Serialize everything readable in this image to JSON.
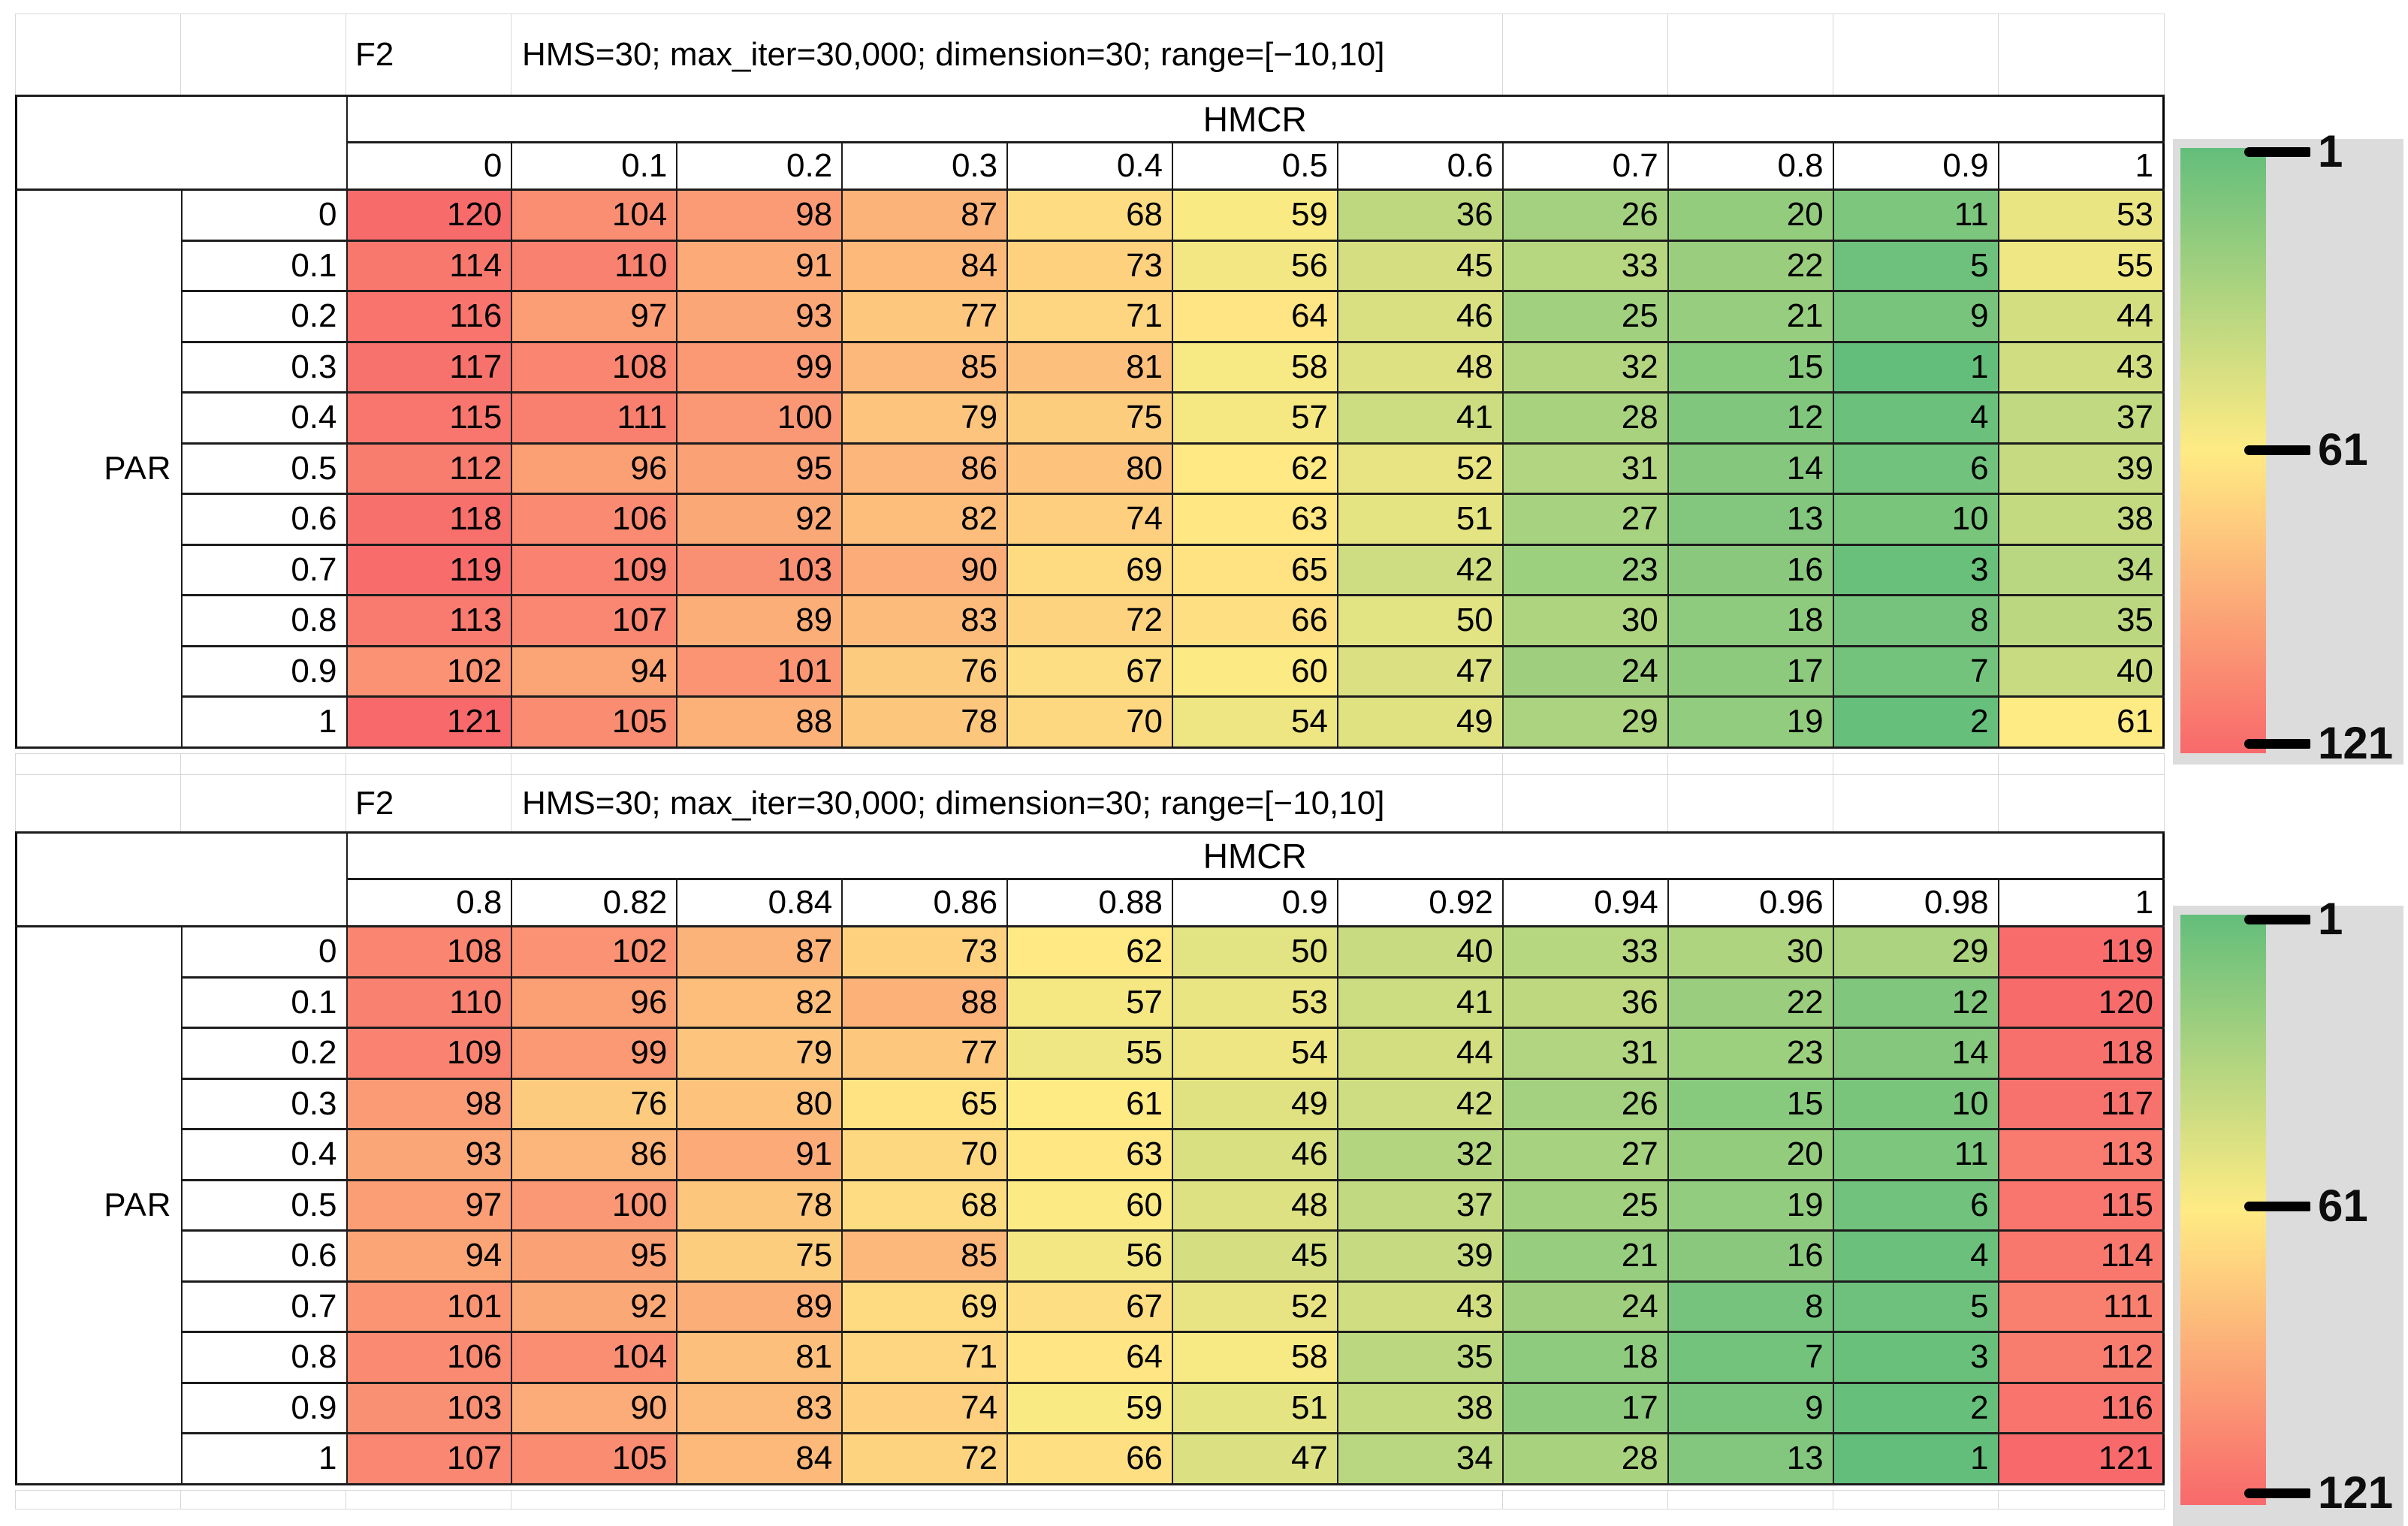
{
  "color_scale": {
    "min_value": 1,
    "mid_value": 61,
    "max_value": 121,
    "min_color": "#63be7b",
    "mid_color": "#ffeb84",
    "max_color": "#f8696b",
    "legend_panel_color": "#dcdcdc"
  },
  "chart_data": [
    {
      "type": "heatmap",
      "function_label": "F2",
      "settings": "HMS=30; max_iter=30,000; dimension=30; range=[−10,10]",
      "col_axis_label": "HMCR",
      "row_axis_label": "PAR",
      "columns": [
        "0",
        "0.1",
        "0.2",
        "0.3",
        "0.4",
        "0.5",
        "0.6",
        "0.7",
        "0.8",
        "0.9",
        "1"
      ],
      "rows": [
        "0",
        "0.1",
        "0.2",
        "0.3",
        "0.4",
        "0.5",
        "0.6",
        "0.7",
        "0.8",
        "0.9",
        "1"
      ],
      "values": [
        [
          120,
          104,
          98,
          87,
          68,
          59,
          36,
          26,
          20,
          11,
          53
        ],
        [
          114,
          110,
          91,
          84,
          73,
          56,
          45,
          33,
          22,
          5,
          55
        ],
        [
          116,
          97,
          93,
          77,
          71,
          64,
          46,
          25,
          21,
          9,
          44
        ],
        [
          117,
          108,
          99,
          85,
          81,
          58,
          48,
          32,
          15,
          1,
          43
        ],
        [
          115,
          111,
          100,
          79,
          75,
          57,
          41,
          28,
          12,
          4,
          37
        ],
        [
          112,
          96,
          95,
          86,
          80,
          62,
          52,
          31,
          14,
          6,
          39
        ],
        [
          118,
          106,
          92,
          82,
          74,
          63,
          51,
          27,
          13,
          10,
          38
        ],
        [
          119,
          109,
          103,
          90,
          69,
          65,
          42,
          23,
          16,
          3,
          34
        ],
        [
          113,
          107,
          89,
          83,
          72,
          66,
          50,
          30,
          18,
          8,
          35
        ],
        [
          102,
          94,
          101,
          76,
          67,
          60,
          47,
          24,
          17,
          7,
          40
        ],
        [
          121,
          105,
          88,
          78,
          70,
          54,
          49,
          29,
          19,
          2,
          61
        ]
      ],
      "legend": {
        "ticks": [
          "1",
          "61",
          "121"
        ],
        "orientation": "vertical",
        "top_value_color": "green",
        "bottom_value_color": "red"
      }
    },
    {
      "type": "heatmap",
      "function_label": "F2",
      "settings": "HMS=30; max_iter=30,000; dimension=30; range=[−10,10]",
      "col_axis_label": "HMCR",
      "row_axis_label": "PAR",
      "columns": [
        "0.8",
        "0.82",
        "0.84",
        "0.86",
        "0.88",
        "0.9",
        "0.92",
        "0.94",
        "0.96",
        "0.98",
        "1"
      ],
      "rows": [
        "0",
        "0.1",
        "0.2",
        "0.3",
        "0.4",
        "0.5",
        "0.6",
        "0.7",
        "0.8",
        "0.9",
        "1"
      ],
      "values": [
        [
          108,
          102,
          87,
          73,
          62,
          50,
          40,
          33,
          30,
          29,
          119
        ],
        [
          110,
          96,
          82,
          88,
          57,
          53,
          41,
          36,
          22,
          12,
          120
        ],
        [
          109,
          99,
          79,
          77,
          55,
          54,
          44,
          31,
          23,
          14,
          118
        ],
        [
          98,
          76,
          80,
          65,
          61,
          49,
          42,
          26,
          15,
          10,
          117
        ],
        [
          93,
          86,
          91,
          70,
          63,
          46,
          32,
          27,
          20,
          11,
          113
        ],
        [
          97,
          100,
          78,
          68,
          60,
          48,
          37,
          25,
          19,
          6,
          115
        ],
        [
          94,
          95,
          75,
          85,
          56,
          45,
          39,
          21,
          16,
          4,
          114
        ],
        [
          101,
          92,
          89,
          69,
          67,
          52,
          43,
          24,
          8,
          5,
          111
        ],
        [
          106,
          104,
          81,
          71,
          64,
          58,
          35,
          18,
          7,
          3,
          112
        ],
        [
          103,
          90,
          83,
          74,
          59,
          51,
          38,
          17,
          9,
          2,
          116
        ],
        [
          107,
          105,
          84,
          72,
          66,
          47,
          34,
          28,
          13,
          1,
          121
        ]
      ],
      "legend": {
        "ticks": [
          "1",
          "61",
          "121"
        ],
        "orientation": "vertical",
        "top_value_color": "green",
        "bottom_value_color": "red"
      }
    }
  ]
}
